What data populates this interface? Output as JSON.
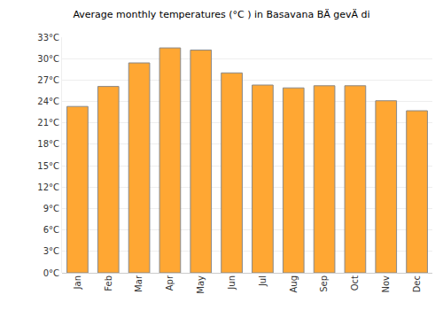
{
  "chart_data": {
    "type": "bar",
    "title": "Average monthly temperatures (°C ) in Basavana BÄ gevÄ di",
    "categories": [
      "Jan",
      "Feb",
      "Mar",
      "Apr",
      "May",
      "Jun",
      "Jul",
      "Aug",
      "Sep",
      "Oct",
      "Nov",
      "Dec"
    ],
    "values": [
      23.3,
      26.1,
      29.4,
      31.5,
      31.2,
      28.0,
      26.3,
      25.9,
      26.2,
      26.2,
      24.1,
      22.7
    ],
    "color": "#ffa733",
    "ylim": [
      0,
      33
    ],
    "yticks": [
      {
        "value": 0,
        "label": "0°C"
      },
      {
        "value": 3,
        "label": "3°C"
      },
      {
        "value": 6,
        "label": "6°C"
      },
      {
        "value": 9,
        "label": "9°C"
      },
      {
        "value": 12,
        "label": "12°C"
      },
      {
        "value": 15,
        "label": "15°C"
      },
      {
        "value": 18,
        "label": "18°C"
      },
      {
        "value": 21,
        "label": "21°C"
      },
      {
        "value": 24,
        "label": "24°C"
      },
      {
        "value": 27,
        "label": "27°C"
      },
      {
        "value": 30,
        "label": "30°C"
      },
      {
        "value": 33,
        "label": "33°C"
      }
    ],
    "grid": true
  }
}
